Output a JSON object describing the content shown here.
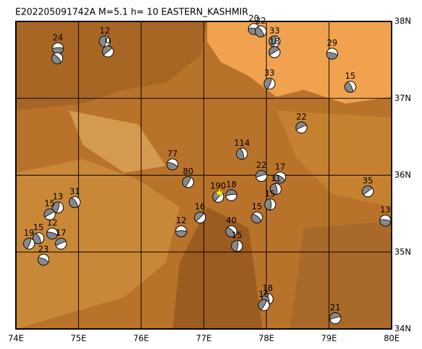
{
  "map": {
    "title": "E202205091742A  M=5.1  h=  10  EASTERN_KASHMIR",
    "xlim": [
      74,
      80
    ],
    "ylim": [
      34,
      38
    ],
    "xticks": [
      {
        "value": 74,
        "label": "74E"
      },
      {
        "value": 75,
        "label": "75E"
      },
      {
        "value": 76,
        "label": "76E"
      },
      {
        "value": 77,
        "label": "77E"
      },
      {
        "value": 78,
        "label": "78E"
      },
      {
        "value": 79,
        "label": "79E"
      },
      {
        "value": 80,
        "label": "80E"
      }
    ],
    "yticks": [
      {
        "value": 34,
        "label": "34N"
      },
      {
        "value": 35,
        "label": "35N"
      },
      {
        "value": 36,
        "label": "36N"
      },
      {
        "value": 37,
        "label": "37N"
      },
      {
        "value": 38,
        "label": "38N"
      }
    ],
    "epicenter": {
      "lon": 77.25,
      "lat": 35.77
    },
    "events": [
      {
        "lon": 74.67,
        "lat": 37.65,
        "depth": 24
      },
      {
        "lon": 74.66,
        "lat": 37.52,
        "depth": null
      },
      {
        "lon": 75.42,
        "lat": 37.74,
        "depth": 12
      },
      {
        "lon": 75.47,
        "lat": 37.61,
        "depth": 0
      },
      {
        "lon": 77.8,
        "lat": 37.9,
        "depth": 20
      },
      {
        "lon": 77.91,
        "lat": 37.87,
        "depth": 22
      },
      {
        "lon": 78.13,
        "lat": 37.74,
        "depth": 33
      },
      {
        "lon": 78.13,
        "lat": 37.6,
        "depth": 18
      },
      {
        "lon": 79.05,
        "lat": 37.58,
        "depth": 29
      },
      {
        "lon": 79.34,
        "lat": 37.15,
        "depth": 15
      },
      {
        "lon": 78.05,
        "lat": 37.19,
        "depth": 33
      },
      {
        "lon": 78.56,
        "lat": 36.62,
        "depth": 22
      },
      {
        "lon": 76.5,
        "lat": 36.14,
        "depth": 77
      },
      {
        "lon": 77.61,
        "lat": 36.28,
        "depth": 114
      },
      {
        "lon": 76.75,
        "lat": 35.91,
        "depth": 80
      },
      {
        "lon": 77.92,
        "lat": 35.99,
        "depth": 22
      },
      {
        "lon": 78.22,
        "lat": 35.97,
        "depth": 17
      },
      {
        "lon": 78.15,
        "lat": 35.82,
        "depth": 11
      },
      {
        "lon": 77.23,
        "lat": 35.72,
        "depth": 190
      },
      {
        "lon": 77.44,
        "lat": 35.74,
        "depth": 18
      },
      {
        "lon": 77.85,
        "lat": 35.45,
        "depth": 15
      },
      {
        "lon": 78.06,
        "lat": 35.62,
        "depth": 15
      },
      {
        "lon": 76.94,
        "lat": 35.45,
        "depth": 16
      },
      {
        "lon": 76.64,
        "lat": 35.27,
        "depth": 12
      },
      {
        "lon": 77.44,
        "lat": 35.27,
        "depth": 40
      },
      {
        "lon": 77.53,
        "lat": 35.08,
        "depth": 15
      },
      {
        "lon": 79.62,
        "lat": 35.79,
        "depth": 35
      },
      {
        "lon": 79.9,
        "lat": 35.41,
        "depth": 13
      },
      {
        "lon": 74.94,
        "lat": 35.65,
        "depth": 31
      },
      {
        "lon": 74.67,
        "lat": 35.58,
        "depth": 13
      },
      {
        "lon": 74.54,
        "lat": 35.49,
        "depth": 15
      },
      {
        "lon": 74.58,
        "lat": 35.24,
        "depth": 12
      },
      {
        "lon": 74.36,
        "lat": 35.18,
        "depth": 15
      },
      {
        "lon": 74.21,
        "lat": 35.11,
        "depth": 19
      },
      {
        "lon": 74.72,
        "lat": 35.11,
        "depth": 17
      },
      {
        "lon": 74.44,
        "lat": 34.9,
        "depth": 23
      },
      {
        "lon": 78.02,
        "lat": 34.39,
        "depth": 18
      },
      {
        "lon": 77.96,
        "lat": 34.31,
        "depth": 16
      },
      {
        "lon": 79.1,
        "lat": 34.14,
        "depth": 21
      }
    ]
  }
}
